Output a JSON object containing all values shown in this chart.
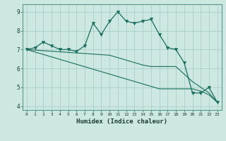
{
  "xlabel": "Humidex (Indice chaleur)",
  "bg_color": "#cce8e0",
  "line_color": "#1a6e60",
  "grid_color": "#aacfc8",
  "x_values": [
    0,
    1,
    2,
    3,
    4,
    5,
    6,
    7,
    8,
    9,
    10,
    11,
    12,
    13,
    14,
    15,
    16,
    17,
    18,
    19,
    20,
    21,
    22,
    23
  ],
  "curve1": [
    7.0,
    7.1,
    7.4,
    7.2,
    7.0,
    7.0,
    6.9,
    7.2,
    8.4,
    7.8,
    8.5,
    9.0,
    8.5,
    8.4,
    8.5,
    8.6,
    7.8,
    7.1,
    7.0,
    6.3,
    4.7,
    4.7,
    5.0,
    4.2
  ],
  "line2": [
    7.0,
    6.97,
    6.94,
    6.91,
    6.88,
    6.85,
    6.82,
    6.79,
    6.76,
    6.73,
    6.7,
    6.57,
    6.44,
    6.31,
    6.18,
    6.1,
    6.1,
    6.1,
    6.1,
    5.7,
    5.3,
    5.0,
    4.7,
    4.2
  ],
  "line3": [
    7.0,
    6.87,
    6.74,
    6.61,
    6.48,
    6.35,
    6.22,
    6.09,
    5.96,
    5.83,
    5.7,
    5.57,
    5.44,
    5.31,
    5.18,
    5.05,
    4.92,
    4.92,
    4.92,
    4.92,
    4.92,
    4.8,
    4.6,
    4.2
  ],
  "ylim": [
    3.8,
    9.4
  ],
  "yticks": [
    4,
    5,
    6,
    7,
    8,
    9
  ],
  "xticks": [
    0,
    1,
    2,
    3,
    4,
    5,
    6,
    7,
    8,
    9,
    10,
    11,
    12,
    13,
    14,
    15,
    16,
    17,
    18,
    19,
    20,
    21,
    22,
    23
  ]
}
